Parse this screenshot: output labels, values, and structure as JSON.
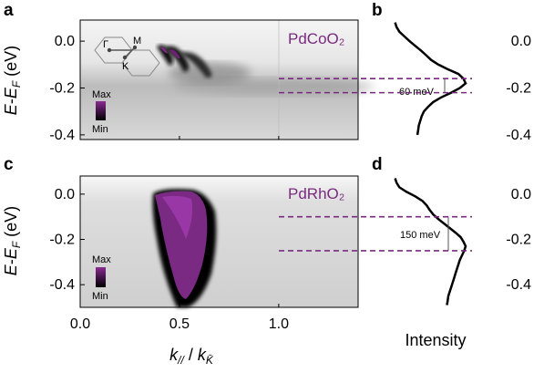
{
  "panels": {
    "a": "a",
    "b": "b",
    "c": "c",
    "d": "d"
  },
  "colors": {
    "accent": "#7a2a7e",
    "dash": "#7a2a7e",
    "text": "#000000"
  },
  "chart_data": [
    {
      "panel": "a",
      "type": "heatmap",
      "title": "",
      "material": "PdCoO₂",
      "xlabel": "k∥ / k_K̄",
      "ylabel": "E-E_F (eV)",
      "xlim": [
        0.0,
        1.4
      ],
      "ylim": [
        -0.42,
        0.09
      ],
      "x_ticks": [
        {
          "value": 0.0,
          "label": "0.0"
        },
        {
          "value": 0.5,
          "label": "0.5"
        },
        {
          "value": 1.0,
          "label": "1.0"
        }
      ],
      "y_ticks": [
        {
          "value": 0.0,
          "label": "0.0"
        },
        {
          "value": -0.2,
          "label": "-0.2"
        },
        {
          "value": -0.4,
          "label": "-0.4"
        }
      ],
      "colorbar": {
        "max_label": "Max",
        "min_label": "Min"
      },
      "inset_labels": {
        "gamma": "Γ",
        "k": "K",
        "m": "M"
      },
      "dashed_levels": [
        -0.16,
        -0.22
      ]
    },
    {
      "panel": "b",
      "type": "line",
      "xlabel": "",
      "ylabel": "",
      "ylim": [
        -0.42,
        0.09
      ],
      "y_ticks": [
        {
          "value": 0.0,
          "label": "0.0"
        },
        {
          "value": -0.2,
          "label": "-0.2"
        },
        {
          "value": -0.4,
          "label": "-0.4"
        }
      ],
      "annotation": "60 meV",
      "dashed_levels": [
        -0.16,
        -0.22
      ],
      "series": [
        {
          "energy": [
            0.08,
            0.06,
            0.04,
            0.02,
            0.0,
            -0.02,
            -0.04,
            -0.06,
            -0.08,
            -0.1,
            -0.12,
            -0.14,
            -0.16,
            -0.18,
            -0.2,
            -0.22,
            -0.24,
            -0.26,
            -0.28,
            -0.3,
            -0.32,
            -0.34,
            -0.36,
            -0.38,
            -0.4
          ],
          "intensity": [
            0.02,
            0.04,
            0.08,
            0.15,
            0.22,
            0.3,
            0.38,
            0.45,
            0.52,
            0.62,
            0.75,
            0.9,
            0.97,
            1.0,
            0.92,
            0.8,
            0.66,
            0.55,
            0.48,
            0.42,
            0.39,
            0.37,
            0.35,
            0.34,
            0.33
          ]
        }
      ]
    },
    {
      "panel": "c",
      "type": "heatmap",
      "title": "",
      "material": "PdRhO₂",
      "xlabel": "k∥ / k_K̄",
      "ylabel": "E-E_F (eV)",
      "xlim": [
        0.0,
        1.4
      ],
      "ylim": [
        -0.5,
        0.08
      ],
      "x_ticks": [
        {
          "value": 0.0,
          "label": "0.0"
        },
        {
          "value": 0.5,
          "label": "0.5"
        },
        {
          "value": 1.0,
          "label": "1.0"
        }
      ],
      "y_ticks": [
        {
          "value": 0.0,
          "label": "0.0"
        },
        {
          "value": -0.2,
          "label": "-0.2"
        },
        {
          "value": -0.4,
          "label": "-0.4"
        }
      ],
      "colorbar": {
        "max_label": "Max",
        "min_label": "Min"
      },
      "dashed_levels": [
        -0.1,
        -0.25
      ]
    },
    {
      "panel": "d",
      "type": "line",
      "xlabel": "Intensity",
      "ylabel": "",
      "ylim": [
        -0.5,
        0.08
      ],
      "y_ticks": [
        {
          "value": 0.0,
          "label": "0.0"
        },
        {
          "value": -0.2,
          "label": "-0.2"
        },
        {
          "value": -0.4,
          "label": "-0.4"
        }
      ],
      "annotation": "150 meV",
      "dashed_levels": [
        -0.1,
        -0.25
      ],
      "series": [
        {
          "energy": [
            0.07,
            0.05,
            0.03,
            0.01,
            -0.01,
            -0.03,
            -0.05,
            -0.07,
            -0.09,
            -0.11,
            -0.13,
            -0.15,
            -0.17,
            -0.19,
            -0.21,
            -0.23,
            -0.25,
            -0.27,
            -0.29,
            -0.31,
            -0.33,
            -0.35,
            -0.37,
            -0.39,
            -0.41,
            -0.43,
            -0.45,
            -0.47,
            -0.49
          ],
          "intensity": [
            0.02,
            0.04,
            0.08,
            0.18,
            0.3,
            0.4,
            0.46,
            0.5,
            0.55,
            0.62,
            0.7,
            0.78,
            0.86,
            0.93,
            0.97,
            1.0,
            0.98,
            0.95,
            0.92,
            0.9,
            0.88,
            0.86,
            0.84,
            0.82,
            0.8,
            0.78,
            0.76,
            0.75,
            0.74
          ]
        }
      ]
    }
  ]
}
